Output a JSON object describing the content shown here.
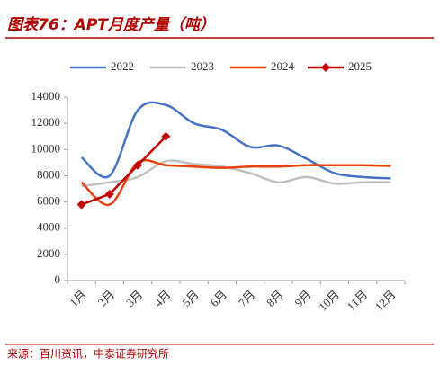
{
  "chart_data": {
    "type": "line",
    "title": "图表76：APT月度产量（吨）",
    "source": "来源：百川资讯，中泰证券研究所",
    "categories": [
      "1月",
      "2月",
      "3月",
      "4月",
      "5月",
      "6月",
      "7月",
      "8月",
      "9月",
      "10月",
      "11月",
      "12月"
    ],
    "series": [
      {
        "name": "2022",
        "color": "#4472c4",
        "values": [
          9400,
          8000,
          13000,
          13400,
          12000,
          11500,
          10200,
          10300,
          9300,
          8200,
          7900,
          7800
        ]
      },
      {
        "name": "2023",
        "color": "#c0c0c0",
        "values": [
          7200,
          7500,
          7900,
          9100,
          8900,
          8700,
          8200,
          7500,
          7900,
          7400,
          7500,
          7500
        ]
      },
      {
        "name": "2024",
        "color": "#e8400c",
        "values": [
          7500,
          5800,
          9000,
          8800,
          8700,
          8600,
          8700,
          8700,
          8800,
          8800,
          8800,
          8750
        ]
      },
      {
        "name": "2025",
        "color": "#c00000",
        "marker": "diamond",
        "values": [
          5800,
          6600,
          8800,
          11000,
          null,
          null,
          null,
          null,
          null,
          null,
          null,
          null
        ]
      }
    ],
    "ylim": [
      0,
      14000
    ],
    "yticks": [
      0,
      2000,
      4000,
      6000,
      8000,
      10000,
      12000,
      14000
    ],
    "grid": false,
    "legend": "top"
  }
}
